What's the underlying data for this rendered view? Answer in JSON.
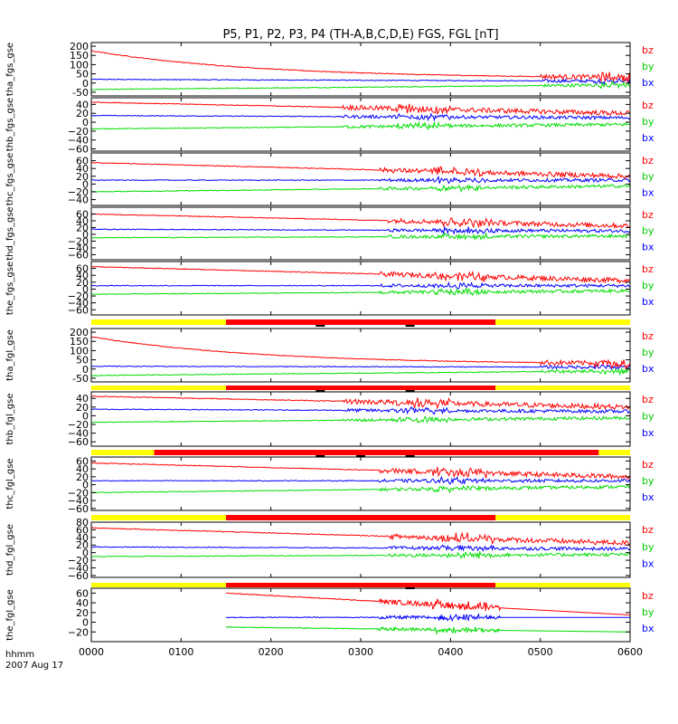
{
  "chart_data": {
    "type": "line",
    "title": "P5, P1, P2, P3, P4 (TH-A,B,C,D,E) FGS, FGL [nT]",
    "x_axis": {
      "label_line1": "hhmm",
      "label_line2": "2007 Aug 17",
      "range": [
        "0000",
        "0600"
      ],
      "ticks": [
        "0000",
        "0100",
        "0200",
        "0300",
        "0400",
        "0500",
        "0600"
      ]
    },
    "colors": {
      "bz": "#ff0000",
      "by": "#00dd00",
      "bx": "#0000ff",
      "bar_yellow": "#ffff00",
      "bar_red": "#ff0000"
    },
    "panels": [
      {
        "ylabel": "tha_fgs_gse",
        "ylim": [
          -70,
          220
        ],
        "yticks": [
          200,
          150,
          100,
          50,
          0,
          -50
        ],
        "ytick_labels": [
          "200",
          "150",
          "100",
          "50",
          "0",
          "-50"
        ],
        "legend": [
          "bz",
          "by",
          "bx"
        ],
        "series": {
          "bz": {
            "from": [
              0,
              175
            ],
            "to": [
              6,
              25
            ]
          },
          "bx": {
            "from": [
              0,
              20
            ],
            "to": [
              6,
              10
            ]
          },
          "by": {
            "from": [
              0,
              -35
            ],
            "to": [
              6,
              -10
            ]
          }
        },
        "onset": 5.0
      },
      {
        "ylabel": "thb_fgs_gse",
        "ylim": [
          -65,
          55
        ],
        "yticks": [
          40,
          20,
          0,
          -20,
          -40,
          -60
        ],
        "ytick_labels": [
          "40",
          "20",
          "0",
          "−20",
          "−40",
          "−60"
        ],
        "legend": [
          "bz",
          "by",
          "bx"
        ],
        "series": {
          "bz": {
            "from": [
              0,
              45
            ],
            "to": [
              6,
              20
            ]
          },
          "bx": {
            "from": [
              0,
              15
            ],
            "to": [
              6,
              10
            ]
          },
          "by": {
            "from": [
              0,
              -15
            ],
            "to": [
              6,
              -5
            ]
          }
        },
        "onset": 2.8
      },
      {
        "ylabel": "thc_fgs_gse",
        "ylim": [
          -55,
          80
        ],
        "yticks": [
          60,
          40,
          20,
          0,
          -20,
          -40
        ],
        "ytick_labels": [
          "60",
          "40",
          "20",
          "0",
          "−20",
          "−40"
        ],
        "legend": [
          "bz",
          "by",
          "bx"
        ],
        "series": {
          "bz": {
            "from": [
              0,
              55
            ],
            "to": [
              6,
              20
            ]
          },
          "bx": {
            "from": [
              0,
              10
            ],
            "to": [
              6,
              10
            ]
          },
          "by": {
            "from": [
              0,
              -20
            ],
            "to": [
              6,
              -5
            ]
          }
        },
        "onset": 3.2
      },
      {
        "ylabel": "thd_fgs_gse",
        "ylim": [
          -75,
          80
        ],
        "yticks": [
          60,
          40,
          20,
          0,
          -20,
          -40,
          -60
        ],
        "ytick_labels": [
          "60",
          "40",
          "20",
          "0",
          "−20",
          "−40",
          "−60"
        ],
        "legend": [
          "bz",
          "by",
          "bx"
        ],
        "series": {
          "bz": {
            "from": [
              0,
              60
            ],
            "to": [
              6,
              25
            ]
          },
          "bx": {
            "from": [
              0,
              15
            ],
            "to": [
              6,
              10
            ]
          },
          "by": {
            "from": [
              0,
              -10
            ],
            "to": [
              6,
              -5
            ]
          }
        },
        "onset": 3.3
      },
      {
        "ylabel": "the_fgs_gse",
        "ylim": [
          -75,
          80
        ],
        "yticks": [
          60,
          40,
          20,
          0,
          -20,
          -40,
          -60
        ],
        "ytick_labels": [
          "60",
          "40",
          "20",
          "0",
          "−20",
          "−40",
          "−60"
        ],
        "legend": [
          "bz",
          "by",
          "bx"
        ],
        "series": {
          "bz": {
            "from": [
              0,
              65
            ],
            "to": [
              6,
              25
            ]
          },
          "bx": {
            "from": [
              0,
              10
            ],
            "to": [
              6,
              10
            ]
          },
          "by": {
            "from": [
              0,
              -15
            ],
            "to": [
              6,
              -5
            ]
          }
        },
        "onset": 3.2
      },
      {
        "ylabel": "tha_fgl_gse",
        "ylim": [
          -70,
          220
        ],
        "yticks": [
          200,
          150,
          100,
          50,
          0,
          -50
        ],
        "ytick_labels": [
          "200",
          "150",
          "100",
          "50",
          "0",
          "-50"
        ],
        "legend": [
          "bz",
          "by",
          "bx"
        ],
        "series": {
          "bz": {
            "from": [
              0,
              175
            ],
            "to": [
              6,
              25
            ]
          },
          "bx": {
            "from": [
              0,
              15
            ],
            "to": [
              6,
              10
            ]
          },
          "by": {
            "from": [
              0,
              -35
            ],
            "to": [
              6,
              -10
            ]
          }
        },
        "onset": 5.0
      },
      {
        "ylabel": "thb_fgl_gse",
        "ylim": [
          -70,
          55
        ],
        "yticks": [
          40,
          20,
          0,
          -20,
          -40,
          -60
        ],
        "ytick_labels": [
          "40",
          "20",
          "0",
          "−20",
          "−40",
          "−60"
        ],
        "legend": [
          "bz",
          "by",
          "bx"
        ],
        "series": {
          "bz": {
            "from": [
              0,
              45
            ],
            "to": [
              6,
              20
            ]
          },
          "bx": {
            "from": [
              0,
              15
            ],
            "to": [
              6,
              10
            ]
          },
          "by": {
            "from": [
              0,
              -15
            ],
            "to": [
              6,
              -5
            ]
          }
        },
        "onset": 2.8
      },
      {
        "ylabel": "thc_fgl_gse",
        "ylim": [
          -65,
          70
        ],
        "yticks": [
          60,
          40,
          20,
          0,
          -20,
          -40,
          -60
        ],
        "ytick_labels": [
          "60",
          "40",
          "20",
          "0",
          "−20",
          "−40",
          "−60"
        ],
        "legend": [
          "bz",
          "by",
          "bx"
        ],
        "series": {
          "bz": {
            "from": [
              0,
              55
            ],
            "to": [
              6,
              20
            ]
          },
          "bx": {
            "from": [
              0,
              10
            ],
            "to": [
              6,
              10
            ]
          },
          "by": {
            "from": [
              0,
              -20
            ],
            "to": [
              6,
              -5
            ]
          }
        },
        "onset": 3.2
      },
      {
        "ylabel": "thd_fgl_gse",
        "ylim": [
          -65,
          80
        ],
        "yticks": [
          80,
          60,
          40,
          20,
          0,
          -20,
          -40,
          -60
        ],
        "ytick_labels": [
          "80",
          "60",
          "40",
          "20",
          "0",
          "−20",
          "−40",
          "−60"
        ],
        "legend": [
          "bz",
          "by",
          "bx"
        ],
        "series": {
          "bz": {
            "from": [
              0,
              65
            ],
            "to": [
              6,
              25
            ]
          },
          "bx": {
            "from": [
              0,
              15
            ],
            "to": [
              6,
              10
            ]
          },
          "by": {
            "from": [
              0,
              -10
            ],
            "to": [
              6,
              -5
            ]
          }
        },
        "onset": 3.3
      },
      {
        "ylabel": "the_fgl_gse",
        "ylim": [
          -40,
          70
        ],
        "yticks": [
          60,
          40,
          20,
          0,
          -20
        ],
        "ytick_labels": [
          "60",
          "40",
          "20",
          "0",
          "−20"
        ],
        "legend": [
          "bz",
          "by",
          "bx"
        ],
        "series": {
          "bz": {
            "from": [
              1.5,
              60
            ],
            "to": [
              6,
              15
            ]
          },
          "bx": {
            "from": [
              1.5,
              10
            ],
            "to": [
              6,
              10
            ]
          },
          "by": {
            "from": [
              1.5,
              -10
            ],
            "to": [
              6,
              -20
            ]
          }
        },
        "onset": 3.2,
        "x_start": 1.5,
        "x_flat_after": 4.55
      }
    ],
    "status_bars": [
      {
        "after_panel": 4,
        "yellow": [
          0,
          6
        ],
        "red": [
          1.5,
          4.5
        ],
        "black_ticks": [
          2.55,
          3.55
        ]
      },
      {
        "after_panel": 5,
        "yellow": [
          0,
          6
        ],
        "red": [
          1.5,
          4.5
        ],
        "black_ticks": [
          2.55,
          3.55
        ]
      },
      {
        "after_panel": 6,
        "yellow": [
          0,
          6
        ],
        "red": [
          0.7,
          5.65
        ],
        "black_ticks": [
          2.55,
          3.0,
          3.55
        ]
      },
      {
        "after_panel": 7,
        "yellow": [
          0,
          6
        ],
        "red": [
          1.5,
          4.5
        ],
        "black_ticks": []
      },
      {
        "after_panel": 8,
        "yellow": [
          0,
          6
        ],
        "red": [
          1.5,
          4.5
        ],
        "black_ticks": [
          3.55
        ]
      }
    ]
  }
}
